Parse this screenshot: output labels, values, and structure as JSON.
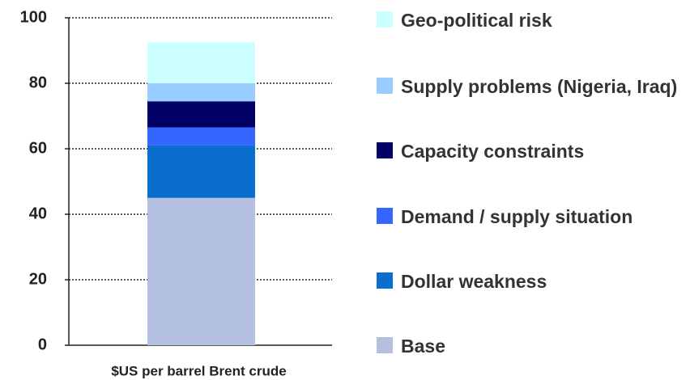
{
  "chart_data": {
    "type": "bar",
    "stacked": true,
    "categories": [
      "$US per barrel Brent crude"
    ],
    "series": [
      {
        "name": "Base",
        "color": "#b4c0e0",
        "values": [
          45
        ]
      },
      {
        "name": "Dollar weakness",
        "color": "#0a6ecf",
        "values": [
          16
        ]
      },
      {
        "name": "Demand / supply situation",
        "color": "#3366ff",
        "values": [
          5.5
        ]
      },
      {
        "name": "Capacity constraints",
        "color": "#000066",
        "values": [
          8
        ]
      },
      {
        "name": "Supply problems (Nigeria, Iraq)",
        "color": "#99ccff",
        "values": [
          5.5
        ]
      },
      {
        "name": "Geo-political risk",
        "color": "#ccffff",
        "values": [
          12.5
        ]
      }
    ],
    "ylim": [
      0,
      100
    ],
    "yticks": [
      0,
      20,
      40,
      60,
      80,
      100
    ],
    "grid": true,
    "legend": "right"
  }
}
